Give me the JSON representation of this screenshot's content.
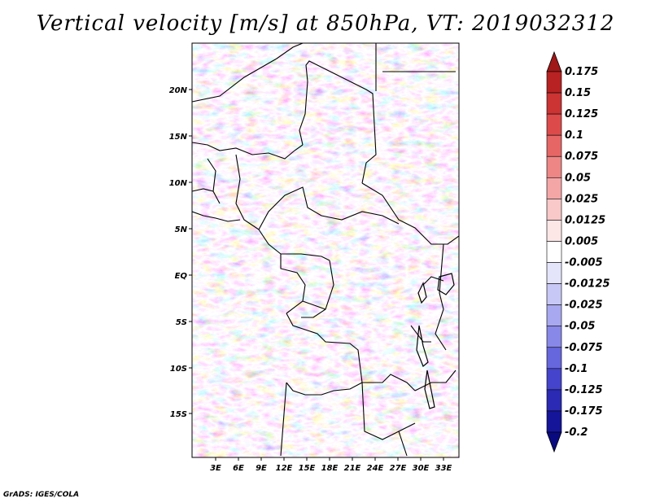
{
  "title": "Vertical velocity [m/s] at 850hPa, VT: 2019032312",
  "credit": "GrADS: IGES/COLA",
  "map": {
    "lat_ticks": [
      "20N",
      "15N",
      "10N",
      "5N",
      "EQ",
      "5S",
      "10S",
      "15S"
    ],
    "lon_ticks": [
      "3E",
      "6E",
      "9E",
      "12E",
      "15E",
      "18E",
      "21E",
      "24E",
      "27E",
      "30E",
      "33E"
    ]
  },
  "colorbar": {
    "labels": [
      "0.175",
      "0.15",
      "0.125",
      "0.1",
      "0.075",
      "0.05",
      "0.025",
      "0.0125",
      "0.005",
      "-0.005",
      "-0.0125",
      "-0.025",
      "-0.05",
      "-0.075",
      "-0.1",
      "-0.125",
      "-0.175",
      "-0.2"
    ],
    "colors": [
      "#a01818",
      "#b82222",
      "#cc3333",
      "#dd4a4a",
      "#e66666",
      "#ee8686",
      "#f4a6a6",
      "#f9c8c8",
      "#fde6e6",
      "#ffffff",
      "#e4e4fb",
      "#c8c8f6",
      "#a8a8f0",
      "#8888e8",
      "#6666dd",
      "#4444cc",
      "#2a2ab4",
      "#15159a",
      "#0a0a80"
    ]
  }
}
